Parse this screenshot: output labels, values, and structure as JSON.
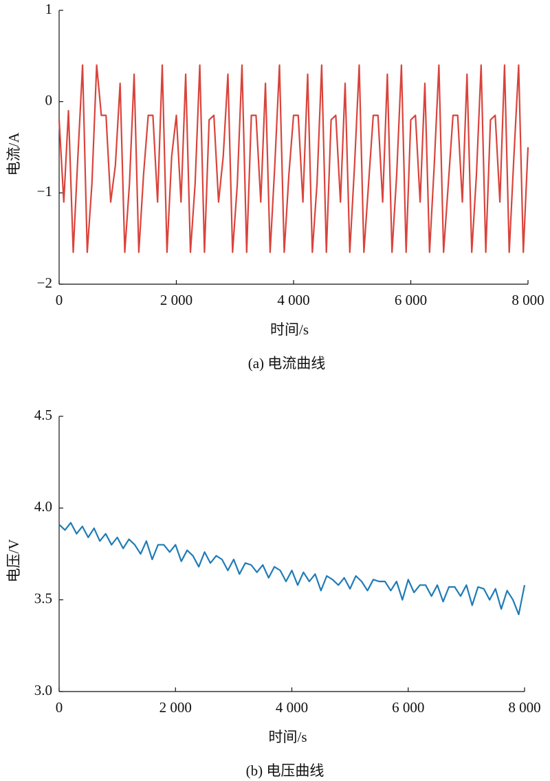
{
  "chart_data": [
    {
      "type": "line",
      "caption": "(a) 电流曲线",
      "x_label": "时间/s",
      "y_label": "电流/A",
      "color": "#d9433b",
      "xlim": [
        0,
        8000
      ],
      "xticks": [
        0,
        {
          "value": 2000,
          "label": "2 000"
        },
        {
          "value": 4000,
          "label": "4 000"
        },
        {
          "value": 6000,
          "label": "6 000"
        },
        {
          "value": 8000,
          "label": "8 000"
        }
      ],
      "ylim": [
        -2,
        1
      ],
      "yticks": [
        {
          "value": -2,
          "label": "−2"
        },
        {
          "value": -1,
          "label": "−1"
        },
        0,
        1
      ],
      "x": [
        0,
        80,
        160,
        240,
        320,
        400,
        480,
        560,
        640,
        720,
        800,
        880,
        960,
        1040,
        1120,
        1200,
        1280,
        1360,
        1440,
        1520,
        1600,
        1680,
        1760,
        1840,
        1920,
        2000,
        2080,
        2160,
        2240,
        2320,
        2400,
        2480,
        2560,
        2640,
        2720,
        2800,
        2880,
        2960,
        3040,
        3120,
        3200,
        3280,
        3360,
        3440,
        3520,
        3600,
        3680,
        3760,
        3840,
        3920,
        4000,
        4080,
        4160,
        4240,
        4320,
        4400,
        4480,
        4560,
        4640,
        4720,
        4800,
        4880,
        4960,
        5040,
        5120,
        5200,
        5280,
        5360,
        5440,
        5520,
        5600,
        5680,
        5760,
        5840,
        5920,
        6000,
        6080,
        6160,
        6240,
        6320,
        6400,
        6480,
        6560,
        6640,
        6720,
        6800,
        6880,
        6960,
        7040,
        7120,
        7200,
        7280,
        7360,
        7440,
        7520,
        7600,
        7680,
        7760,
        7840,
        7920,
        8000
      ],
      "values": [
        -0.2,
        -1.1,
        -0.1,
        -1.65,
        -0.6,
        0.4,
        -1.65,
        -0.9,
        0.4,
        -0.15,
        -0.15,
        -1.1,
        -0.7,
        0.2,
        -1.65,
        -0.9,
        0.3,
        -1.65,
        -0.8,
        -0.15,
        -0.15,
        -1.1,
        0.4,
        -1.65,
        -0.6,
        -0.15,
        -1.1,
        0.3,
        -1.65,
        -0.9,
        0.4,
        -1.65,
        -0.2,
        -0.15,
        -1.1,
        -0.6,
        0.3,
        -1.65,
        -0.9,
        0.4,
        -1.65,
        -0.15,
        -0.15,
        -1.1,
        0.2,
        -1.65,
        -0.7,
        0.4,
        -1.65,
        -0.8,
        -0.15,
        -0.15,
        -1.1,
        0.3,
        -1.65,
        -0.9,
        0.4,
        -1.65,
        -0.2,
        -0.15,
        -1.1,
        0.2,
        -1.65,
        -0.7,
        0.4,
        -1.65,
        -0.9,
        -0.15,
        -0.15,
        -1.1,
        0.3,
        -1.65,
        -0.8,
        0.4,
        -1.65,
        -0.2,
        -0.15,
        -1.1,
        0.2,
        -1.65,
        -0.7,
        0.4,
        -1.65,
        -0.9,
        -0.15,
        -0.15,
        -1.1,
        0.3,
        -1.65,
        -0.8,
        0.4,
        -1.65,
        -0.2,
        -0.15,
        -1.1,
        0.4,
        -1.65,
        -0.6,
        0.4,
        -1.65,
        -0.5
      ]
    },
    {
      "type": "line",
      "caption": "(b) 电压曲线",
      "x_label": "时间/s",
      "y_label": "电压/V",
      "color": "#1f7bb6",
      "xlim": [
        0,
        8000
      ],
      "xticks": [
        0,
        {
          "value": 2000,
          "label": "2 000"
        },
        {
          "value": 4000,
          "label": "4 000"
        },
        {
          "value": 6000,
          "label": "6 000"
        },
        {
          "value": 8000,
          "label": "8 000"
        }
      ],
      "ylim": [
        3,
        4.5
      ],
      "yticks": [
        {
          "value": 3,
          "label": "3.0"
        },
        3.5,
        {
          "value": 4,
          "label": "4.0"
        },
        4.5
      ],
      "x": [
        0,
        100,
        200,
        300,
        400,
        500,
        600,
        700,
        800,
        900,
        1000,
        1100,
        1200,
        1300,
        1400,
        1500,
        1600,
        1700,
        1800,
        1900,
        2000,
        2100,
        2200,
        2300,
        2400,
        2500,
        2600,
        2700,
        2800,
        2900,
        3000,
        3100,
        3200,
        3300,
        3400,
        3500,
        3600,
        3700,
        3800,
        3900,
        4000,
        4100,
        4200,
        4300,
        4400,
        4500,
        4600,
        4700,
        4800,
        4900,
        5000,
        5100,
        5200,
        5300,
        5400,
        5500,
        5600,
        5700,
        5800,
        5900,
        6000,
        6100,
        6200,
        6300,
        6400,
        6500,
        6600,
        6700,
        6800,
        6900,
        7000,
        7100,
        7200,
        7300,
        7400,
        7500,
        7600,
        7700,
        7800,
        7900,
        8000
      ],
      "values": [
        3.91,
        3.88,
        3.92,
        3.86,
        3.9,
        3.84,
        3.89,
        3.82,
        3.86,
        3.8,
        3.84,
        3.78,
        3.83,
        3.8,
        3.75,
        3.82,
        3.72,
        3.8,
        3.8,
        3.76,
        3.8,
        3.71,
        3.77,
        3.74,
        3.68,
        3.76,
        3.7,
        3.74,
        3.72,
        3.66,
        3.72,
        3.64,
        3.7,
        3.69,
        3.65,
        3.69,
        3.62,
        3.68,
        3.66,
        3.6,
        3.66,
        3.58,
        3.65,
        3.6,
        3.64,
        3.55,
        3.63,
        3.61,
        3.58,
        3.62,
        3.56,
        3.63,
        3.6,
        3.55,
        3.61,
        3.6,
        3.6,
        3.55,
        3.6,
        3.5,
        3.61,
        3.54,
        3.58,
        3.58,
        3.52,
        3.58,
        3.49,
        3.57,
        3.57,
        3.52,
        3.58,
        3.47,
        3.57,
        3.56,
        3.5,
        3.56,
        3.45,
        3.55,
        3.5,
        3.42,
        3.58
      ]
    }
  ]
}
